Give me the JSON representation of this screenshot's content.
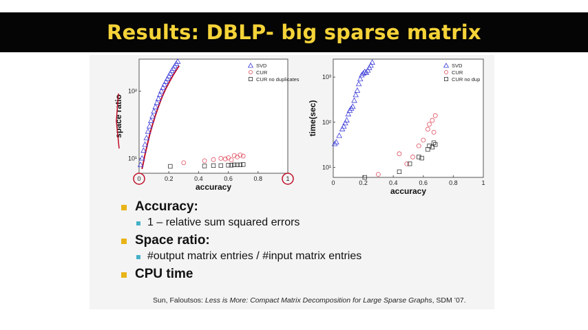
{
  "slide": {
    "title": "Results: DBLP- big sparse matrix",
    "bullets": [
      {
        "label": "Accuracy:",
        "sub": "1 – relative sum squared errors"
      },
      {
        "label": "Space ratio:",
        "sub": "#output matrix entries / #input matrix entries"
      },
      {
        "label": "CPU time",
        "sub": ""
      }
    ],
    "citation": {
      "authors": "Sun, Faloutsos: ",
      "title": "Less is More: Compact Matrix Decomposition for Large Sparse Graphs",
      "venue": ", SDM ’07."
    },
    "colors": {
      "title_text": "#f5d338",
      "title_bg": "#050505",
      "bullet_main": "#e8b418",
      "bullet_sub": "#45b0c8",
      "svd": "#3a3ad8",
      "cur": "#e05060",
      "curnd": "#333333",
      "annotation": "#c0102a"
    }
  },
  "chart_data": [
    {
      "type": "scatter",
      "xlabel": "accuracy",
      "ylabel": "space ratio",
      "xlim": [
        0,
        1
      ],
      "ylim": [
        6,
        300
      ],
      "yscale": "log",
      "x_ticks": [
        "0",
        "0.2",
        "0.4",
        "0.6",
        "0.8",
        "1"
      ],
      "x_tick_values": [
        0,
        0.2,
        0.4,
        0.6,
        0.8,
        1
      ],
      "y_ticks": [
        "10¹",
        "10²"
      ],
      "y_tick_values": [
        10,
        100
      ],
      "legend_position": "top-right",
      "series": [
        {
          "name": "SVD",
          "marker": "triangle",
          "points": [
            [
              0.01,
              8
            ],
            [
              0.02,
              10
            ],
            [
              0.03,
              13
            ],
            [
              0.04,
              16
            ],
            [
              0.05,
              20
            ],
            [
              0.06,
              25
            ],
            [
              0.07,
              30
            ],
            [
              0.08,
              36
            ],
            [
              0.09,
              42
            ],
            [
              0.1,
              50
            ],
            [
              0.11,
              58
            ],
            [
              0.12,
              67
            ],
            [
              0.13,
              77
            ],
            [
              0.14,
              88
            ],
            [
              0.15,
              100
            ],
            [
              0.16,
              112
            ],
            [
              0.17,
              125
            ],
            [
              0.18,
              138
            ],
            [
              0.19,
              152
            ],
            [
              0.2,
              167
            ],
            [
              0.21,
              183
            ],
            [
              0.22,
              200
            ],
            [
              0.23,
              217
            ],
            [
              0.24,
              235
            ],
            [
              0.25,
              255
            ],
            [
              0.26,
              275
            ]
          ]
        },
        {
          "name": "CUR",
          "marker": "circle",
          "points": [
            [
              0.3,
              8.6
            ],
            [
              0.44,
              9.2
            ],
            [
              0.5,
              9.6
            ],
            [
              0.55,
              10.0
            ],
            [
              0.58,
              9.8
            ],
            [
              0.6,
              10.2
            ],
            [
              0.62,
              9.5
            ],
            [
              0.64,
              11.0
            ],
            [
              0.66,
              10.5
            ],
            [
              0.68,
              11.2
            ],
            [
              0.7,
              10.8
            ]
          ]
        },
        {
          "name": "CUR no duplicates",
          "marker": "square",
          "points": [
            [
              0.21,
              7.6
            ],
            [
              0.44,
              7.7
            ],
            [
              0.5,
              7.8
            ],
            [
              0.55,
              7.8
            ],
            [
              0.6,
              7.9
            ],
            [
              0.62,
              7.9
            ],
            [
              0.64,
              8.0
            ],
            [
              0.66,
              8.0
            ],
            [
              0.68,
              8.0
            ],
            [
              0.7,
              8.1
            ]
          ]
        }
      ]
    },
    {
      "type": "scatter",
      "xlabel": "accuracy",
      "ylabel": "time(sec)",
      "xlim": [
        0,
        1
      ],
      "ylim": [
        6,
        2500
      ],
      "yscale": "log",
      "x_ticks": [
        "0",
        "0.2",
        "0.4",
        "0.6",
        "0.8",
        "1"
      ],
      "x_tick_values": [
        0,
        0.2,
        0.4,
        0.6,
        0.8,
        1
      ],
      "y_ticks": [
        "10¹",
        "10²",
        "10³"
      ],
      "y_tick_values": [
        10,
        100,
        1000
      ],
      "legend_position": "top-right",
      "series": [
        {
          "name": "SVD",
          "marker": "triangle",
          "points": [
            [
              0.01,
              33
            ],
            [
              0.02,
              36
            ],
            [
              0.04,
              50
            ],
            [
              0.06,
              70
            ],
            [
              0.07,
              80
            ],
            [
              0.08,
              95
            ],
            [
              0.09,
              110
            ],
            [
              0.1,
              150
            ],
            [
              0.11,
              180
            ],
            [
              0.12,
              200
            ],
            [
              0.13,
              220
            ],
            [
              0.14,
              300
            ],
            [
              0.15,
              400
            ],
            [
              0.16,
              500
            ],
            [
              0.17,
              700
            ],
            [
              0.18,
              900
            ],
            [
              0.19,
              1100
            ],
            [
              0.2,
              1200
            ],
            [
              0.21,
              1300
            ],
            [
              0.22,
              1250
            ],
            [
              0.23,
              1400
            ],
            [
              0.24,
              1600
            ],
            [
              0.25,
              1800
            ],
            [
              0.26,
              2100
            ]
          ]
        },
        {
          "name": "CUR",
          "marker": "circle",
          "points": [
            [
              0.3,
              7
            ],
            [
              0.44,
              20
            ],
            [
              0.49,
              12
            ],
            [
              0.53,
              17
            ],
            [
              0.57,
              30
            ],
            [
              0.6,
              40
            ],
            [
              0.63,
              70
            ],
            [
              0.64,
              90
            ],
            [
              0.66,
              110
            ],
            [
              0.67,
              60
            ],
            [
              0.68,
              140
            ]
          ]
        },
        {
          "name": "CUR no dup",
          "marker": "square",
          "points": [
            [
              0.21,
              6
            ],
            [
              0.44,
              8
            ],
            [
              0.51,
              12
            ],
            [
              0.57,
              17
            ],
            [
              0.59,
              16
            ],
            [
              0.63,
              25
            ],
            [
              0.64,
              30
            ],
            [
              0.66,
              28
            ],
            [
              0.67,
              35
            ],
            [
              0.68,
              32
            ]
          ]
        }
      ]
    }
  ]
}
